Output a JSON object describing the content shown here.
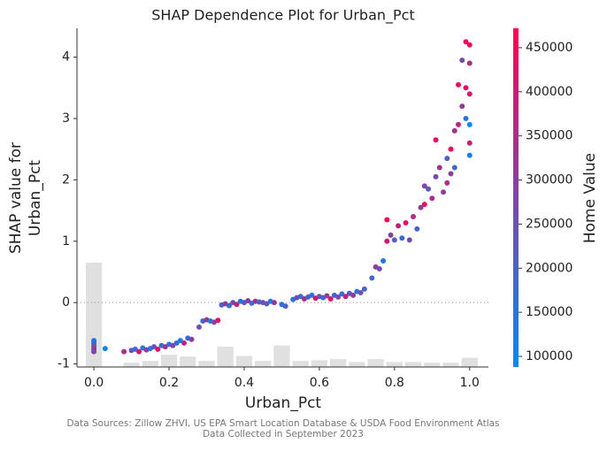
{
  "chart_data": {
    "type": "scatter",
    "title": "SHAP Dependence Plot for Urban_Pct",
    "x_label": "Urban_Pct",
    "y_label_lines": [
      "SHAP value for",
      "Urban_Pct"
    ],
    "colorbar_label": "Home Value",
    "footnotes": [
      "Data Sources: Zillow ZHVI, US EPA Smart Location Database & USDA Food Environment Atlas",
      "Data Collected in September 2023"
    ],
    "xlim": [
      -0.045,
      1.05
    ],
    "ylim": [
      -1.05,
      4.47
    ],
    "xticks": [
      {
        "value": 0,
        "label": "0.0"
      },
      0.2,
      0.4,
      0.6,
      0.8,
      {
        "value": 1,
        "label": "1.0"
      }
    ],
    "yticks": [
      -1,
      0,
      1,
      2,
      3,
      4
    ],
    "clim": [
      88000,
      472000
    ],
    "cticks": [
      100000,
      150000,
      200000,
      250000,
      300000,
      350000,
      400000,
      450000
    ],
    "colormap": [
      "#008afa",
      "#ff0052"
    ],
    "zero_line": true,
    "x": [
      0,
      0,
      0,
      0,
      0,
      0,
      0.03,
      0.08,
      0.1,
      0.11,
      0.12,
      0.13,
      0.14,
      0.15,
      0.16,
      0.17,
      0.18,
      0.19,
      0.2,
      0.21,
      0.22,
      0.23,
      0.24,
      0.25,
      0.26,
      0.28,
      0.29,
      0.3,
      0.31,
      0.32,
      0.33,
      0.34,
      0.35,
      0.36,
      0.37,
      0.38,
      0.39,
      0.4,
      0.41,
      0.42,
      0.43,
      0.44,
      0.45,
      0.46,
      0.47,
      0.48,
      0.5,
      0.51,
      0.53,
      0.54,
      0.55,
      0.56,
      0.57,
      0.58,
      0.59,
      0.6,
      0.61,
      0.62,
      0.63,
      0.64,
      0.65,
      0.66,
      0.67,
      0.68,
      0.69,
      0.7,
      0.71,
      0.72,
      0.74,
      0.75,
      0.76,
      0.77,
      0.78,
      0.78,
      0.79,
      0.8,
      0.81,
      0.82,
      0.83,
      0.84,
      0.85,
      0.86,
      0.87,
      0.88,
      0.88,
      0.89,
      0.9,
      0.91,
      0.91,
      0.92,
      0.93,
      0.94,
      0.94,
      0.95,
      0.95,
      0.96,
      0.96,
      0.97,
      0.97,
      0.98,
      0.98,
      0.99,
      0.99,
      0.99,
      1,
      1,
      1,
      1,
      1,
      1
    ],
    "values": [
      -0.62,
      -0.65,
      -0.68,
      -0.72,
      -0.76,
      -0.8,
      -0.75,
      -0.8,
      -0.78,
      -0.76,
      -0.8,
      -0.74,
      -0.77,
      -0.75,
      -0.72,
      -0.76,
      -0.7,
      -0.72,
      -0.68,
      -0.7,
      -0.66,
      -0.62,
      -0.66,
      -0.58,
      -0.6,
      -0.4,
      -0.3,
      -0.28,
      -0.3,
      -0.32,
      -0.29,
      -0.04,
      -0.02,
      -0.05,
      0,
      -0.03,
      0.02,
      0,
      0.03,
      -0.01,
      0.02,
      0.01,
      0,
      -0.02,
      0.02,
      0,
      -0.03,
      -0.06,
      0.05,
      0.08,
      0.1,
      0.06,
      0.09,
      0.12,
      0.07,
      0.1,
      0.08,
      0.11,
      0.06,
      0.12,
      0.09,
      0.14,
      0.1,
      0.15,
      0.12,
      0.18,
      0.16,
      0.22,
      0.4,
      0.58,
      0.55,
      0.68,
      1,
      1.35,
      1.1,
      1.02,
      1.25,
      1.05,
      1.3,
      1.02,
      1.4,
      1.2,
      1.55,
      1.9,
      1.6,
      1.85,
      1.7,
      2.05,
      2.65,
      2.2,
      1.8,
      2.35,
      1.95,
      2.1,
      2.5,
      2.8,
      2.2,
      3.55,
      2.9,
      3.2,
      3.95,
      3.5,
      4.25,
      3,
      4.2,
      3.9,
      3.4,
      2.9,
      2.6,
      2.4
    ],
    "color_values": [
      150000,
      120000,
      200000,
      250000,
      300000,
      280000,
      100000,
      350000,
      220000,
      180000,
      400000,
      150000,
      300000,
      130000,
      260000,
      420000,
      160000,
      350000,
      140000,
      280000,
      190000,
      120000,
      380000,
      160000,
      300000,
      250000,
      180000,
      330000,
      140000,
      280000,
      420000,
      200000,
      310000,
      170000,
      260000,
      380000,
      140000,
      230000,
      300000,
      160000,
      350000,
      190000,
      270000,
      220000,
      150000,
      320000,
      170000,
      200000,
      140000,
      260000,
      180000,
      340000,
      200000,
      150000,
      400000,
      240000,
      170000,
      310000,
      440000,
      190000,
      260000,
      160000,
      380000,
      230000,
      300000,
      170000,
      250000,
      200000,
      180000,
      300000,
      260000,
      150000,
      400000,
      450000,
      300000,
      220000,
      380000,
      180000,
      420000,
      260000,
      340000,
      200000,
      300000,
      280000,
      430000,
      220000,
      350000,
      260000,
      440000,
      320000,
      290000,
      200000,
      360000,
      300000,
      450000,
      330000,
      180000,
      440000,
      380000,
      300000,
      270000,
      420000,
      460000,
      150000,
      430000,
      350000,
      400000,
      100000,
      380000,
      120000
    ],
    "histogram": {
      "color": "#e0e0e0",
      "bins": [
        -0.025,
        0.025,
        0.075,
        0.125,
        0.175,
        0.225,
        0.275,
        0.325,
        0.375,
        0.425,
        0.475,
        0.525,
        0.575,
        0.625,
        0.675,
        0.725,
        0.775,
        0.825,
        0.875,
        0.925,
        0.975,
        1.025
      ],
      "heights": [
        0.65,
        -1.05,
        -0.98,
        -0.95,
        -0.85,
        -0.88,
        -0.95,
        -0.72,
        -0.87,
        -0.95,
        -0.7,
        -0.95,
        -0.94,
        -0.92,
        -0.97,
        -0.92,
        -0.97,
        -0.97,
        -0.98,
        -0.98,
        -0.9
      ]
    }
  }
}
